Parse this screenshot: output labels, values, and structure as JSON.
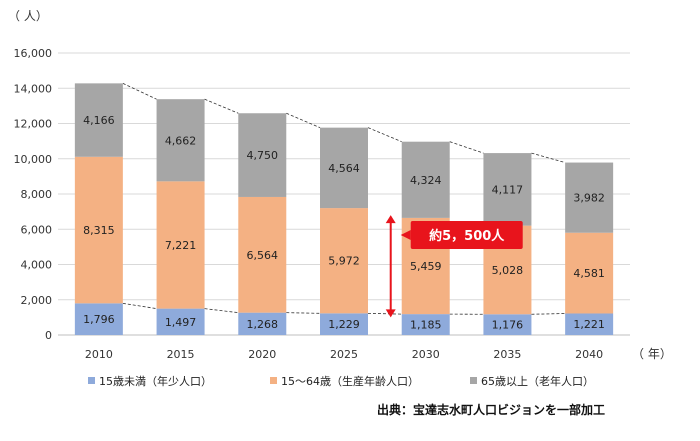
{
  "chart_data": {
    "type": "bar",
    "stacked": true,
    "y_unit_label": "（ 人）",
    "x_unit_label": "（ 年）",
    "categories": [
      "2010",
      "2015",
      "2020",
      "2025",
      "2030",
      "2035",
      "2040"
    ],
    "ylim": [
      0,
      16000
    ],
    "yticks": [
      "0",
      "2,000",
      "4,000",
      "6,000",
      "8,000",
      "10,000",
      "12,000",
      "14,000",
      "16,000"
    ],
    "ytick_values": [
      0,
      2000,
      4000,
      6000,
      8000,
      10000,
      12000,
      14000,
      16000
    ],
    "grid": true,
    "legend_position": "bottom",
    "series": [
      {
        "name": "15歳未満（年少人口）",
        "color": "#8eaadb",
        "values": [
          1796,
          1497,
          1268,
          1229,
          1185,
          1176,
          1221
        ],
        "labels": [
          "1,796",
          "1,497",
          "1,268",
          "1,229",
          "1,185",
          "1,176",
          "1,221"
        ]
      },
      {
        "name": "15～64歳（生産年齢人口）",
        "color": "#f4b183",
        "values": [
          8315,
          7221,
          6564,
          5972,
          5459,
          5028,
          4581
        ],
        "labels": [
          "8,315",
          "7,221",
          "6,564",
          "5,972",
          "5,459",
          "5,028",
          "4,581"
        ]
      },
      {
        "name": "65歳以上（老年人口）",
        "color": "#a6a6a6",
        "values": [
          4166,
          4662,
          4750,
          4564,
          4324,
          4117,
          3982
        ],
        "labels": [
          "4,166",
          "4,662",
          "4,750",
          "4,564",
          "4,324",
          "4,117",
          "3,982"
        ]
      }
    ],
    "annotation": {
      "text": "約5，500人",
      "color": "#e8141c",
      "arrow_from_value": 1000,
      "arrow_to_value": 6800
    },
    "source": "出典：宝達志水町人口ビジョンを一部加工"
  }
}
